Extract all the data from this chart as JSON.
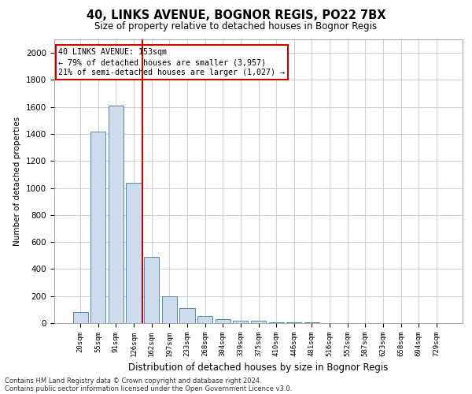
{
  "title": "40, LINKS AVENUE, BOGNOR REGIS, PO22 7BX",
  "subtitle": "Size of property relative to detached houses in Bognor Regis",
  "xlabel": "Distribution of detached houses by size in Bognor Regis",
  "ylabel": "Number of detached properties",
  "annotation_line1": "40 LINKS AVENUE: 153sqm",
  "annotation_line2": "← 79% of detached houses are smaller (3,957)",
  "annotation_line3": "21% of semi-detached houses are larger (1,027) →",
  "bar_color": "#ccdcec",
  "bar_edge_color": "#5588aa",
  "vline_color": "#cc0000",
  "annotation_box_edge": "#cc0000",
  "categories": [
    "20sqm",
    "55sqm",
    "91sqm",
    "126sqm",
    "162sqm",
    "197sqm",
    "233sqm",
    "268sqm",
    "304sqm",
    "339sqm",
    "375sqm",
    "410sqm",
    "446sqm",
    "481sqm",
    "516sqm",
    "552sqm",
    "587sqm",
    "623sqm",
    "658sqm",
    "694sqm",
    "729sqm"
  ],
  "values": [
    80,
    1420,
    1610,
    1040,
    490,
    200,
    110,
    50,
    30,
    20,
    15,
    8,
    5,
    3,
    2,
    1,
    1,
    0,
    0,
    0,
    0
  ],
  "vline_x": 3.5,
  "ylim": [
    0,
    2100
  ],
  "yticks": [
    0,
    200,
    400,
    600,
    800,
    1000,
    1200,
    1400,
    1600,
    1800,
    2000
  ],
  "footnote1": "Contains HM Land Registry data © Crown copyright and database right 2024.",
  "footnote2": "Contains public sector information licensed under the Open Government Licence v3.0."
}
